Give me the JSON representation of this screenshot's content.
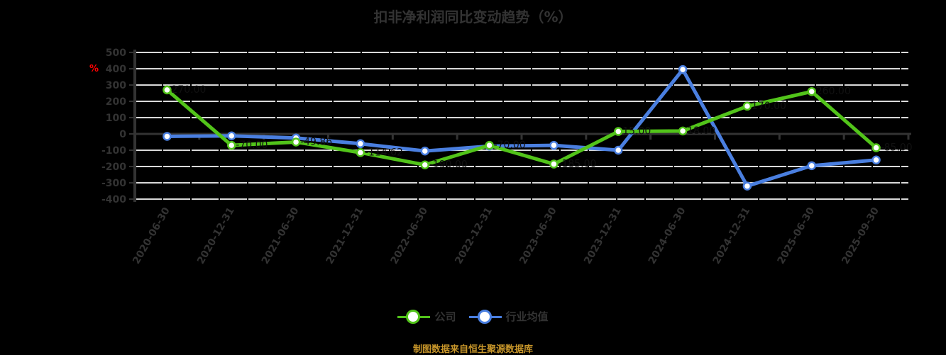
{
  "title": "扣非净利润同比变动趋势（%）",
  "y_unit": "%",
  "legend": [
    {
      "label": "公司",
      "color": "#52c41a"
    },
    {
      "label": "行业均值",
      "color": "#4a7fe0"
    }
  ],
  "source": "制图数据来自恒生聚源数据库",
  "chart_data": {
    "type": "line",
    "title": "扣非净利润同比变动趋势（%）",
    "xlabel": "",
    "ylabel": "%",
    "ylim": [
      -400,
      500
    ],
    "yticks": [
      500,
      400,
      300,
      200,
      100,
      0,
      -100,
      -200,
      -300,
      -400
    ],
    "grid": true,
    "legend_position": "bottom",
    "categories": [
      "2020-06-30",
      "2020-12-31",
      "2021-06-30",
      "2021-12-31",
      "2022-06-30",
      "2022-12-31",
      "2023-06-30",
      "2023-12-31",
      "2024-06-30",
      "2024-12-31",
      "2025-06-30",
      "2025-09-30"
    ],
    "series": [
      {
        "name": "公司",
        "color": "#52c41a",
        "values": [
          270,
          -70,
          -49.86,
          -114.62,
          -190,
          -70,
          -185,
          15,
          18,
          170,
          260,
          -85
        ]
      },
      {
        "name": "行业均值",
        "color": "#4a7fe0",
        "values": [
          -15,
          -12,
          -25,
          -60,
          -105,
          -75,
          -70,
          -100,
          395,
          -320,
          -195,
          -160
        ]
      }
    ]
  }
}
